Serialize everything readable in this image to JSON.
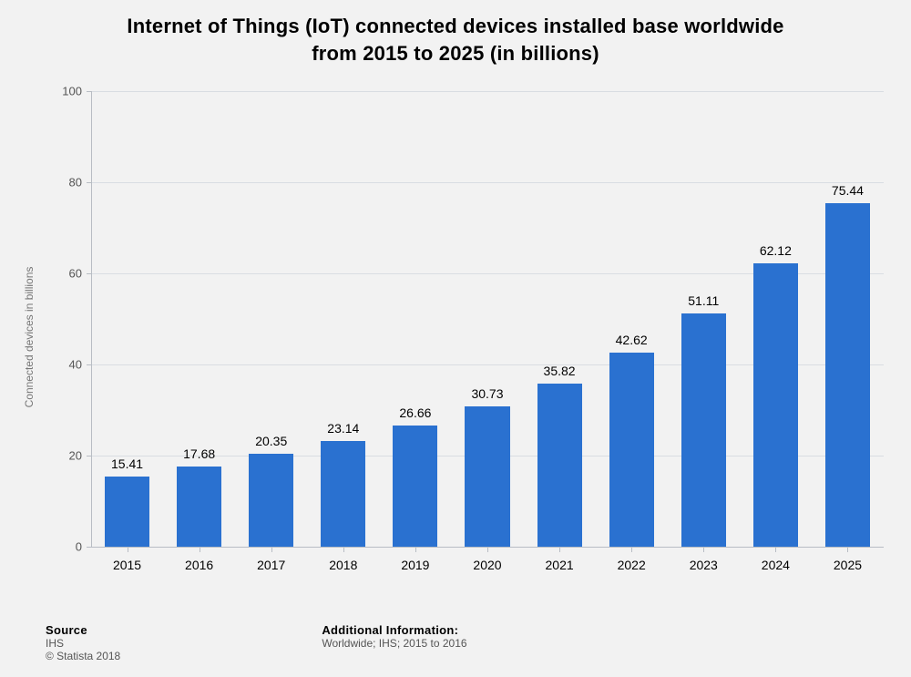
{
  "title_line1": "Internet of Things (IoT) connected devices installed base worldwide",
  "title_line2": "from 2015 to 2025 (in billions)",
  "chart": {
    "type": "bar",
    "ylabel": "Connected devices in billions",
    "ylim": [
      0,
      100
    ],
    "ytick_step": 20,
    "yticks": [
      0,
      20,
      40,
      60,
      80,
      100
    ],
    "categories": [
      "2015",
      "2016",
      "2017",
      "2018",
      "2019",
      "2020",
      "2021",
      "2022",
      "2023",
      "2024",
      "2025"
    ],
    "values": [
      15.41,
      17.68,
      20.35,
      23.14,
      26.66,
      30.73,
      35.82,
      42.62,
      51.11,
      62.12,
      75.44
    ],
    "bar_color": "#2a71d0",
    "bar_width_ratio": 0.62,
    "background_color": "#f2f2f2",
    "grid_color": "#d9dde2",
    "axis_color": "#b8bdc4",
    "value_label_fontsize": 14,
    "tick_label_fontsize": 13,
    "title_fontsize": 22
  },
  "footer": {
    "source_heading": "Source",
    "source_text": "IHS",
    "copyright": "© Statista 2018",
    "additional_heading": "Additional Information:",
    "additional_text": "Worldwide; IHS; 2015 to 2016"
  }
}
